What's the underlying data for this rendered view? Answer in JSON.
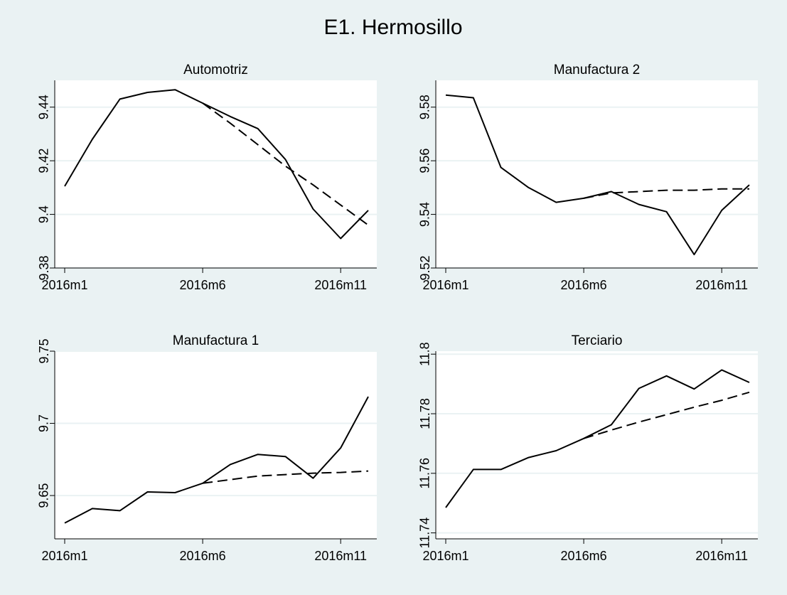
{
  "title": "E1. Hermosillo",
  "colors": {
    "background": "#eaf2f3",
    "plot_background": "#ffffff",
    "grid": "#eaf2f3",
    "line": "#000000"
  },
  "chart_data": [
    {
      "type": "line",
      "title": "Automotriz",
      "x": [
        "2016m1",
        "2016m2",
        "2016m3",
        "2016m4",
        "2016m5",
        "2016m6",
        "2016m7",
        "2016m8",
        "2016m9",
        "2016m10",
        "2016m11",
        "2016m12"
      ],
      "xticks": [
        "2016m1",
        "2016m6",
        "2016m11"
      ],
      "ylim": [
        9.38,
        9.45
      ],
      "yticks": [
        "9.38",
        "9.4",
        "9.42",
        "9.44"
      ],
      "grid": true,
      "series": [
        {
          "style": "solid",
          "values": [
            9.4105,
            9.428,
            9.443,
            9.4455,
            9.4465,
            9.4415,
            9.4365,
            9.432,
            9.4205,
            9.402,
            9.391,
            9.4015
          ]
        },
        {
          "style": "dashed",
          "values": [
            null,
            null,
            null,
            null,
            null,
            9.4415,
            9.434,
            9.426,
            9.418,
            9.411,
            9.4035,
            9.396
          ]
        }
      ]
    },
    {
      "type": "line",
      "title": "Manufactura 2",
      "x": [
        "2016m1",
        "2016m2",
        "2016m3",
        "2016m4",
        "2016m5",
        "2016m6",
        "2016m7",
        "2016m8",
        "2016m9",
        "2016m10",
        "2016m11",
        "2016m12"
      ],
      "xticks": [
        "2016m1",
        "2016m6",
        "2016m11"
      ],
      "ylim": [
        9.52,
        9.59
      ],
      "yticks": [
        "9.52",
        "9.54",
        "9.56",
        "9.58"
      ],
      "grid": true,
      "series": [
        {
          "style": "solid",
          "values": [
            9.5845,
            9.5835,
            9.5575,
            9.55,
            9.5445,
            9.546,
            9.5485,
            9.5437,
            9.541,
            9.525,
            9.5415,
            9.551
          ]
        },
        {
          "style": "dashed",
          "values": [
            null,
            null,
            null,
            null,
            null,
            9.546,
            9.548,
            9.5485,
            9.549,
            9.549,
            9.5495,
            9.5495
          ]
        }
      ]
    },
    {
      "type": "line",
      "title": "Manufactura 1",
      "x": [
        "2016m1",
        "2016m2",
        "2016m3",
        "2016m4",
        "2016m5",
        "2016m6",
        "2016m7",
        "2016m8",
        "2016m9",
        "2016m10",
        "2016m11",
        "2016m12"
      ],
      "xticks": [
        "2016m1",
        "2016m6",
        "2016m11"
      ],
      "ylim": [
        9.62,
        9.75
      ],
      "yticks": [
        "9.65",
        "9.7",
        "9.75"
      ],
      "grid": true,
      "series": [
        {
          "style": "solid",
          "values": [
            9.631,
            9.641,
            9.6395,
            9.6525,
            9.652,
            9.6585,
            9.6715,
            9.6785,
            9.677,
            9.662,
            9.683,
            9.7185
          ]
        },
        {
          "style": "dashed",
          "values": [
            null,
            null,
            null,
            null,
            null,
            9.6585,
            9.661,
            9.6635,
            9.6645,
            9.6655,
            9.666,
            9.667
          ]
        }
      ]
    },
    {
      "type": "line",
      "title": "Terciario",
      "x": [
        "2016m1",
        "2016m2",
        "2016m3",
        "2016m4",
        "2016m5",
        "2016m6",
        "2016m7",
        "2016m8",
        "2016m9",
        "2016m10",
        "2016m11",
        "2016m12"
      ],
      "xticks": [
        "2016m1",
        "2016m6",
        "2016m11"
      ],
      "ylim": [
        11.738,
        11.801
      ],
      "yticks": [
        "11.74",
        "11.76",
        "11.78",
        "11.8"
      ],
      "grid": true,
      "series": [
        {
          "style": "solid",
          "values": [
            11.7485,
            11.7613,
            11.7613,
            11.7653,
            11.7676,
            11.7717,
            11.7763,
            11.7885,
            11.7927,
            11.7883,
            11.7947,
            11.7905
          ]
        },
        {
          "style": "dashed",
          "values": [
            null,
            null,
            null,
            null,
            null,
            11.7717,
            11.7745,
            11.7772,
            11.7797,
            11.7822,
            11.7845,
            11.7872
          ]
        }
      ]
    }
  ]
}
